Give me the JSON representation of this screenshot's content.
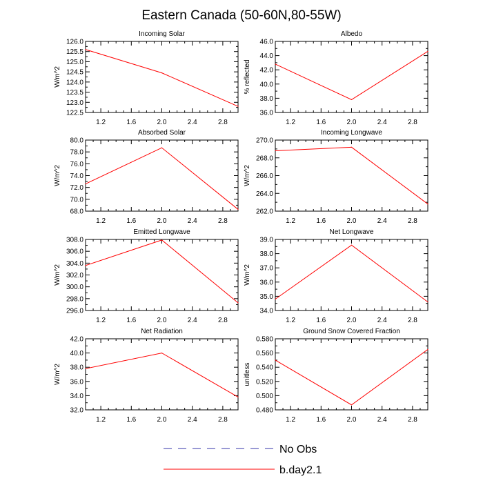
{
  "title": "Eastern Canada (50-60N,80-55W)",
  "colors": {
    "model": "#ff0000",
    "obs": "#3333aa",
    "axis": "#000000"
  },
  "legend": [
    {
      "label": "No Obs",
      "style": "dashed",
      "color": "#3333aa"
    },
    {
      "label": "b.day2.1",
      "style": "solid",
      "color": "#ff0000"
    }
  ],
  "chart_data": [
    {
      "type": "line",
      "title": "Incoming Solar",
      "ylabel": "W/m^2",
      "xlim": [
        1.0,
        3.0
      ],
      "xticks": [
        1.2,
        1.6,
        2.0,
        2.4,
        2.8
      ],
      "xtick_labels": [
        "1.2",
        "1.6",
        "2.0",
        "2.4",
        "2.8"
      ],
      "ylim": [
        122.5,
        126.0
      ],
      "yticks": [
        122.5,
        123.0,
        123.5,
        124.0,
        124.5,
        125.0,
        125.5,
        126.0
      ],
      "ytick_labels": [
        "122.5",
        "123.0",
        "123.5",
        "124.0",
        "124.5",
        "125.0",
        "125.5",
        "126.0"
      ],
      "series": [
        {
          "name": "b.day2.1",
          "x": [
            1,
            2,
            3
          ],
          "values": [
            125.6,
            124.45,
            122.8
          ]
        }
      ]
    },
    {
      "type": "line",
      "title": "Albedo",
      "ylabel": "% reflected",
      "xlim": [
        1.0,
        3.0
      ],
      "xticks": [
        1.2,
        1.6,
        2.0,
        2.4,
        2.8
      ],
      "xtick_labels": [
        "1.2",
        "1.6",
        "2.0",
        "2.4",
        "2.8"
      ],
      "ylim": [
        36.0,
        46.0
      ],
      "yticks": [
        36.0,
        38.0,
        40.0,
        42.0,
        44.0,
        46.0
      ],
      "ytick_labels": [
        "36.0",
        "38.0",
        "40.0",
        "42.0",
        "44.0",
        "46.0"
      ],
      "series": [
        {
          "name": "b.day2.1",
          "x": [
            1,
            2,
            3
          ],
          "values": [
            42.8,
            37.8,
            44.6
          ]
        }
      ]
    },
    {
      "type": "line",
      "title": "Absorbed Solar",
      "ylabel": "W/m^2",
      "xlim": [
        1.0,
        3.0
      ],
      "xticks": [
        1.2,
        1.6,
        2.0,
        2.4,
        2.8
      ],
      "xtick_labels": [
        "1.2",
        "1.6",
        "2.0",
        "2.4",
        "2.8"
      ],
      "ylim": [
        68.0,
        80.0
      ],
      "yticks": [
        68.0,
        70.0,
        72.0,
        74.0,
        76.0,
        78.0,
        80.0
      ],
      "ytick_labels": [
        "68.0",
        "70.0",
        "72.0",
        "74.0",
        "76.0",
        "78.0",
        "80.0"
      ],
      "series": [
        {
          "name": "b.day2.1",
          "x": [
            1,
            2,
            3
          ],
          "values": [
            72.6,
            78.7,
            68.3
          ]
        }
      ]
    },
    {
      "type": "line",
      "title": "Incoming Longwave",
      "ylabel": "W/m^2",
      "xlim": [
        1.0,
        3.0
      ],
      "xticks": [
        1.2,
        1.6,
        2.0,
        2.4,
        2.8
      ],
      "xtick_labels": [
        "1.2",
        "1.6",
        "2.0",
        "2.4",
        "2.8"
      ],
      "ylim": [
        262.0,
        270.0
      ],
      "yticks": [
        262.0,
        264.0,
        266.0,
        268.0,
        270.0
      ],
      "ytick_labels": [
        "262.0",
        "264.0",
        "266.0",
        "268.0",
        "270.0"
      ],
      "series": [
        {
          "name": "b.day2.1",
          "x": [
            1,
            2,
            3
          ],
          "values": [
            268.8,
            269.2,
            262.8
          ]
        }
      ]
    },
    {
      "type": "line",
      "title": "Emitted Longwave",
      "ylabel": "W/m^2",
      "xlim": [
        1.0,
        3.0
      ],
      "xticks": [
        1.2,
        1.6,
        2.0,
        2.4,
        2.8
      ],
      "xtick_labels": [
        "1.2",
        "1.6",
        "2.0",
        "2.4",
        "2.8"
      ],
      "ylim": [
        296.0,
        308.0
      ],
      "yticks": [
        296.0,
        298.0,
        300.0,
        302.0,
        304.0,
        306.0,
        308.0
      ],
      "ytick_labels": [
        "296.0",
        "298.0",
        "300.0",
        "302.0",
        "304.0",
        "306.0",
        "308.0"
      ],
      "series": [
        {
          "name": "b.day2.1",
          "x": [
            1,
            2,
            3
          ],
          "values": [
            303.6,
            307.9,
            297.3
          ]
        }
      ]
    },
    {
      "type": "line",
      "title": "Net Longwave",
      "ylabel": "W/m^2",
      "xlim": [
        1.0,
        3.0
      ],
      "xticks": [
        1.2,
        1.6,
        2.0,
        2.4,
        2.8
      ],
      "xtick_labels": [
        "1.2",
        "1.6",
        "2.0",
        "2.4",
        "2.8"
      ],
      "ylim": [
        34.0,
        39.0
      ],
      "yticks": [
        34.0,
        35.0,
        36.0,
        37.0,
        38.0,
        39.0
      ],
      "ytick_labels": [
        "34.0",
        "35.0",
        "36.0",
        "37.0",
        "38.0",
        "39.0"
      ],
      "series": [
        {
          "name": "b.day2.1",
          "x": [
            1,
            2,
            3
          ],
          "values": [
            34.8,
            38.6,
            34.6
          ]
        }
      ]
    },
    {
      "type": "line",
      "title": "Net Radiation",
      "ylabel": "W/m^2",
      "xlim": [
        1.0,
        3.0
      ],
      "xticks": [
        1.2,
        1.6,
        2.0,
        2.4,
        2.8
      ],
      "xtick_labels": [
        "1.2",
        "1.6",
        "2.0",
        "2.4",
        "2.8"
      ],
      "ylim": [
        32.0,
        42.0
      ],
      "yticks": [
        32.0,
        34.0,
        36.0,
        38.0,
        40.0,
        42.0
      ],
      "ytick_labels": [
        "32.0",
        "34.0",
        "36.0",
        "38.0",
        "40.0",
        "42.0"
      ],
      "series": [
        {
          "name": "b.day2.1",
          "x": [
            1,
            2,
            3
          ],
          "values": [
            37.8,
            40.0,
            33.8
          ]
        }
      ]
    },
    {
      "type": "line",
      "title": "Ground Snow Covered Fraction",
      "ylabel": "unitless",
      "xlim": [
        1.0,
        3.0
      ],
      "xticks": [
        1.2,
        1.6,
        2.0,
        2.4,
        2.8
      ],
      "xtick_labels": [
        "1.2",
        "1.6",
        "2.0",
        "2.4",
        "2.8"
      ],
      "ylim": [
        0.48,
        0.58
      ],
      "yticks": [
        0.48,
        0.49,
        0.5,
        0.51,
        0.52,
        0.53,
        0.54,
        0.55,
        0.56,
        0.57,
        0.58
      ],
      "ytick_labels": [
        "0.480",
        "",
        "0.500",
        "",
        "0.520",
        "",
        "0.540",
        "",
        "0.560",
        "",
        "0.580"
      ],
      "series": [
        {
          "name": "b.day2.1",
          "x": [
            1,
            2,
            3
          ],
          "values": [
            0.55,
            0.487,
            0.565
          ]
        }
      ]
    }
  ]
}
